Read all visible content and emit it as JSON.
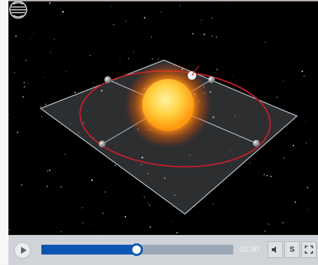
{
  "player": {
    "current_time": "01:30",
    "progress": 0.495,
    "colors": {
      "progress_fill": "#0c56b2",
      "progress_track": "#9aa8b6",
      "controls_bg": "#d0d4d8",
      "sky": "#000000",
      "sun_core": "#ffe070",
      "orbit": "#c0202c"
    },
    "buttons": {
      "play": "play-icon",
      "volume": "speaker-icon",
      "subtitles_label": "S",
      "fullscreen": "fullscreen-icon"
    }
  },
  "video": {
    "logo_icon": "globe-logo-icon"
  }
}
